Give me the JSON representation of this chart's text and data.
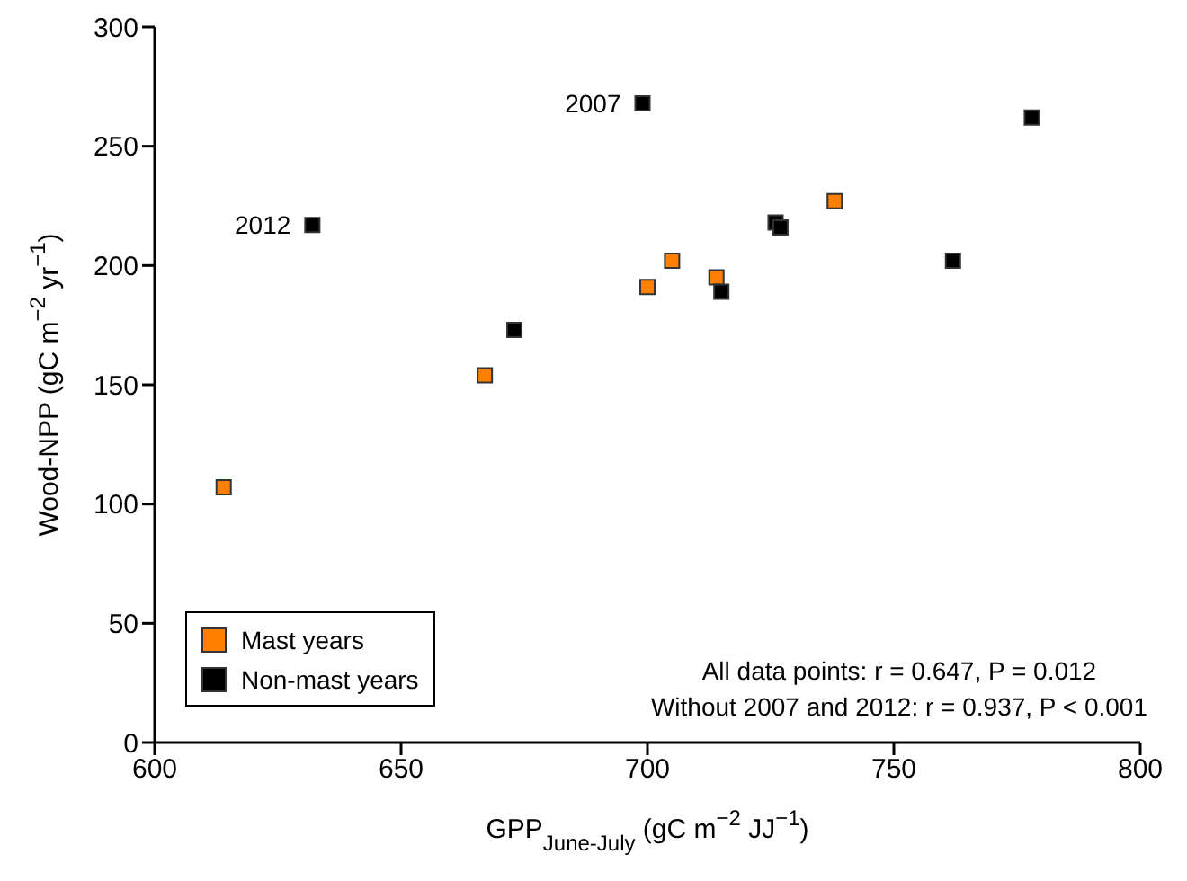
{
  "chart_data": {
    "type": "scatter",
    "xlabel": "GPP$_{June-July}$ (gC m$^{−2}$ JJ$^{−1}$)",
    "ylabel": "Wood-NPP (gC m$^{−2}$ yr$^{−1}$)",
    "xlim": [
      600,
      800
    ],
    "xticks": [
      600,
      650,
      700,
      750,
      800
    ],
    "ylim": [
      0,
      300
    ],
    "yticks": [
      0,
      50,
      100,
      150,
      200,
      250,
      300
    ],
    "grid": false,
    "legend": "bottom left",
    "marker": "square",
    "series": [
      {
        "name": "Mast years",
        "color": "#ff8000",
        "x": [
          614,
          667,
          700,
          705,
          714,
          738
        ],
        "values": [
          107,
          154,
          191,
          202,
          195,
          227
        ]
      },
      {
        "name": "Non-mast years",
        "color": "#000000",
        "x": [
          632,
          673,
          699,
          715,
          726,
          727,
          762,
          778
        ],
        "values": [
          217,
          173,
          268,
          189,
          218,
          216,
          202,
          262
        ]
      }
    ],
    "annotations": [
      {
        "text": "2007",
        "x": 699,
        "y": 268
      },
      {
        "text": "2012",
        "x": 632,
        "y": 217
      },
      "All data points: r = 0.647, P = 0.012",
      "Without 2007 and 2012: r = 0.937, P < 0.001"
    ]
  }
}
